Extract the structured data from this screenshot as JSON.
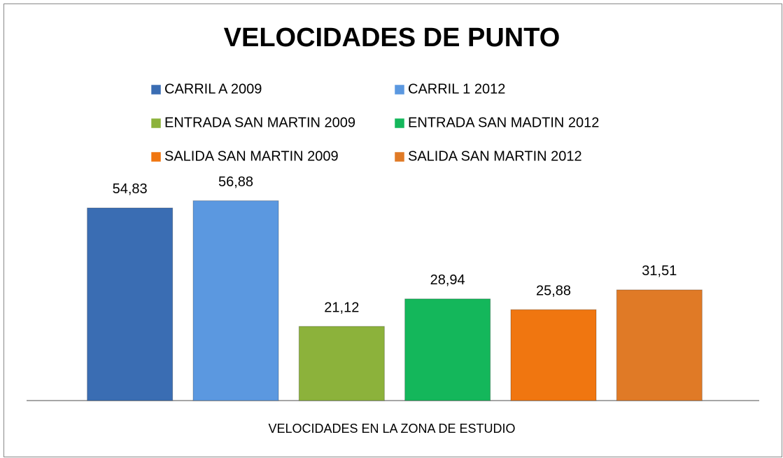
{
  "chart_data": {
    "type": "bar",
    "title": "VELOCIDADES DE PUNTO",
    "categories": [
      "VELOCIDADES EN LA ZONA DE ESTUDIO"
    ],
    "series": [
      {
        "name": "CARRIL A 2009",
        "color": "#3a6db3",
        "values": [
          54.83
        ],
        "value_labels": [
          "54,83"
        ]
      },
      {
        "name": "CARRIL 1 2012",
        "color": "#5b98e0",
        "values": [
          56.88
        ],
        "value_labels": [
          "56,88"
        ]
      },
      {
        "name": "ENTRADA SAN MARTIN 2009",
        "color": "#8cb23b",
        "values": [
          21.12
        ],
        "value_labels": [
          "21,12"
        ]
      },
      {
        "name": "ENTRADA SAN MADTIN 2012",
        "color": "#14b75b",
        "values": [
          28.94
        ],
        "value_labels": [
          "28,94"
        ]
      },
      {
        "name": "SALIDA SAN MARTIN 2009",
        "color": "#f07610",
        "values": [
          25.88
        ],
        "value_labels": [
          "25,88"
        ]
      },
      {
        "name": "SALIDA SAN MARTIN 2012",
        "color": "#e07a26",
        "values": [
          31.51
        ],
        "value_labels": [
          "31,51"
        ]
      }
    ],
    "ylim": [
      0,
      60
    ],
    "legend": "top"
  }
}
